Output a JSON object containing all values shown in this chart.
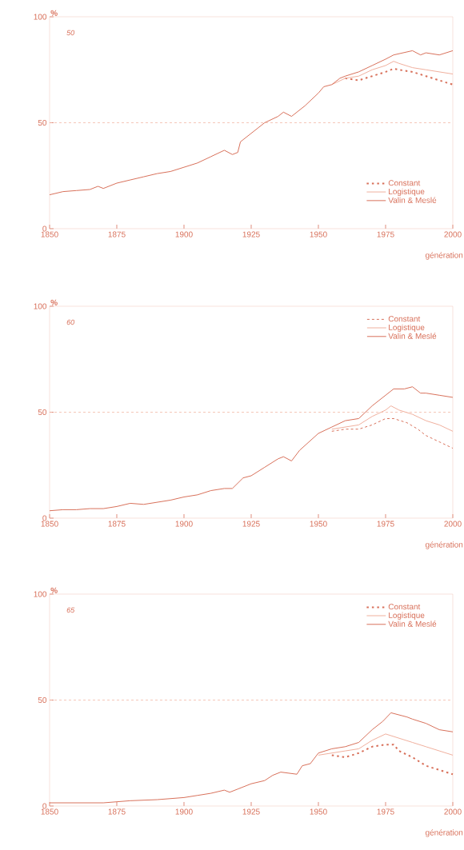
{
  "chart_data": [
    {
      "type": "line",
      "title": "50",
      "ylabel": "%",
      "xlabel": "génération",
      "xlim": [
        1850,
        2000
      ],
      "ylim": [
        0,
        100
      ],
      "xticks": [
        1850,
        1875,
        1900,
        1925,
        1950,
        1975,
        2000
      ],
      "yticks": [
        0,
        50,
        100
      ],
      "legend": "bottom right",
      "ref_lines": [
        {
          "axis": "y",
          "value": 50,
          "color": "#f3b9a6",
          "line_style": "dashed"
        }
      ],
      "series": [
        {
          "name": "Constant",
          "color": "#d8705a",
          "line_style": "dotted",
          "x": [
            1960,
            1965,
            1970,
            1975,
            1978,
            1980,
            1985,
            1990,
            1995,
            2000
          ],
          "values": [
            71,
            70,
            72,
            74,
            75.5,
            75,
            74,
            72,
            70,
            68
          ]
        },
        {
          "name": "Logistique",
          "color": "#f0b09e",
          "line_style": "solid",
          "x": [
            1955,
            1960,
            1965,
            1970,
            1975,
            1978,
            1980,
            1985,
            1990,
            1995,
            2000
          ],
          "values": [
            68,
            71,
            72,
            75,
            77,
            79,
            78,
            76,
            75,
            74,
            73
          ]
        },
        {
          "name": "Valin & Meslé",
          "color": "#d8705a",
          "line_style": "solid",
          "x": [
            1850,
            1855,
            1860,
            1865,
            1868,
            1870,
            1875,
            1880,
            1885,
            1890,
            1895,
            1900,
            1905,
            1910,
            1915,
            1918,
            1920,
            1921,
            1925,
            1930,
            1935,
            1937,
            1940,
            1945,
            1950,
            1952,
            1955,
            1958,
            1960,
            1965,
            1970,
            1975,
            1978,
            1985,
            1988,
            1990,
            1995,
            2000
          ],
          "values": [
            16,
            17.5,
            18,
            18.5,
            20,
            19,
            21.5,
            23,
            24.5,
            26,
            27,
            29,
            31,
            34,
            37,
            35,
            36,
            41,
            45,
            50,
            53,
            55,
            53,
            58,
            64,
            67,
            68,
            71,
            72,
            74,
            77,
            80,
            82,
            84,
            82,
            83,
            82,
            84
          ]
        }
      ]
    },
    {
      "type": "line",
      "title": "60",
      "ylabel": "%",
      "xlabel": "génération",
      "xlim": [
        1850,
        2000
      ],
      "ylim": [
        0,
        100
      ],
      "xticks": [
        1850,
        1875,
        1900,
        1925,
        1950,
        1975,
        2000
      ],
      "yticks": [
        0,
        50,
        100
      ],
      "legend": "top right",
      "ref_lines": [
        {
          "axis": "y",
          "value": 50,
          "color": "#f3b9a6",
          "line_style": "dashed"
        }
      ],
      "series": [
        {
          "name": "Constant",
          "color": "#d8705a",
          "line_style": "dashed",
          "x": [
            1955,
            1960,
            1965,
            1970,
            1975,
            1978,
            1983,
            1987,
            1990,
            1995,
            2000
          ],
          "values": [
            41,
            42,
            42,
            44,
            47,
            47,
            45,
            42,
            39,
            36,
            33
          ]
        },
        {
          "name": "Logistique",
          "color": "#f0b09e",
          "line_style": "solid",
          "x": [
            1955,
            1960,
            1965,
            1970,
            1975,
            1977,
            1980,
            1985,
            1990,
            1995,
            2000
          ],
          "values": [
            42,
            43,
            44,
            48,
            51,
            53,
            51,
            49,
            46,
            44,
            41
          ]
        },
        {
          "name": "Valin & Meslé",
          "color": "#d8705a",
          "line_style": "solid",
          "x": [
            1850,
            1855,
            1860,
            1865,
            1870,
            1875,
            1880,
            1885,
            1890,
            1895,
            1900,
            1905,
            1910,
            1915,
            1918,
            1922,
            1925,
            1930,
            1935,
            1937,
            1940,
            1943,
            1950,
            1955,
            1960,
            1965,
            1970,
            1975,
            1978,
            1982,
            1985,
            1988,
            1990,
            1995,
            2000
          ],
          "values": [
            3.5,
            4,
            4,
            4.5,
            4.5,
            5.5,
            7,
            6.5,
            7.5,
            8.5,
            10,
            11,
            13,
            14,
            14,
            19,
            20,
            24,
            28,
            29,
            27,
            32,
            40,
            43,
            46,
            47,
            53,
            58,
            61,
            61,
            62,
            59,
            59,
            58,
            57
          ]
        }
      ]
    },
    {
      "type": "line",
      "title": "65",
      "ylabel": "%",
      "xlabel": "génération",
      "xlim": [
        1850,
        2000
      ],
      "ylim": [
        0,
        100
      ],
      "xticks": [
        1850,
        1875,
        1900,
        1925,
        1950,
        1975,
        2000
      ],
      "yticks": [
        0,
        50,
        100
      ],
      "legend": "top right",
      "ref_lines": [
        {
          "axis": "y",
          "value": 50,
          "color": "#f3b9a6",
          "line_style": "dashed"
        }
      ],
      "series": [
        {
          "name": "Constant",
          "color": "#d8705a",
          "line_style": "dotted",
          "x": [
            1955,
            1960,
            1965,
            1970,
            1975,
            1978,
            1980,
            1985,
            1990,
            1995,
            2000
          ],
          "values": [
            24,
            23,
            25,
            28,
            29,
            29,
            26,
            23,
            19,
            17,
            15
          ]
        },
        {
          "name": "Logistique",
          "color": "#f0b09e",
          "line_style": "solid",
          "x": [
            1950,
            1955,
            1960,
            1965,
            1970,
            1975,
            1980,
            1985,
            1990,
            1995,
            2000
          ],
          "values": [
            24,
            25,
            26,
            27,
            31,
            34,
            32,
            30,
            28,
            26,
            24
          ]
        },
        {
          "name": "Valin & Meslé",
          "color": "#d8705a",
          "line_style": "solid",
          "x": [
            1850,
            1870,
            1875,
            1880,
            1890,
            1900,
            1905,
            1910,
            1915,
            1917,
            1920,
            1925,
            1930,
            1933,
            1936,
            1942,
            1944,
            1947,
            1950,
            1955,
            1960,
            1965,
            1970,
            1974,
            1977,
            1980,
            1983,
            1985,
            1990,
            1995,
            2000
          ],
          "values": [
            1.5,
            1.5,
            2,
            2.5,
            3,
            4,
            5,
            6,
            7.5,
            6.5,
            8,
            10.5,
            12,
            14.5,
            16,
            15,
            19,
            20,
            25,
            27,
            28,
            30,
            36,
            40,
            44,
            43,
            42,
            41,
            39,
            36,
            35
          ]
        }
      ]
    }
  ]
}
